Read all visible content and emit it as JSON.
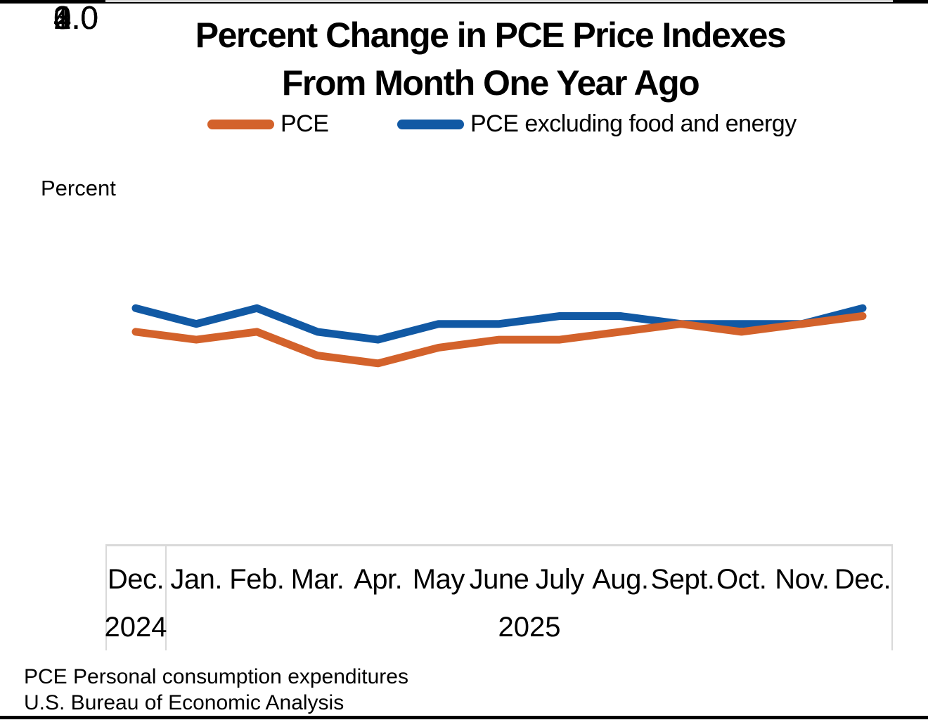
{
  "page": {
    "title_line1": "Percent Change in PCE Price Indexes",
    "title_line2": "From Month One Year Ago",
    "axis_unit_label": "Percent",
    "footer_line1": "PCE Personal consumption expenditures",
    "footer_line2": "U.S. Bureau of Economic Analysis"
  },
  "chart_data": {
    "type": "line",
    "title": "Percent Change in PCE Price Indexes From Month One Year Ago",
    "ylabel": "Percent",
    "ylim": [
      0.0,
      4.0
    ],
    "yticks": [
      "4.0",
      "3.0",
      "2.0",
      "1.0",
      "0.0"
    ],
    "grid": true,
    "legend_position": "top",
    "categories": [
      "Dec.",
      "Jan.",
      "Feb.",
      "Mar.",
      "Apr.",
      "May",
      "June",
      "July",
      "Aug.",
      "Sept.",
      "Oct.",
      "Nov.",
      "Dec."
    ],
    "year_groups": [
      {
        "label": "2024",
        "categories": [
          "Dec."
        ]
      },
      {
        "label": "2025",
        "categories": [
          "Jan.",
          "Feb.",
          "Mar.",
          "Apr.",
          "May",
          "June",
          "July",
          "Aug.",
          "Sept.",
          "Oct.",
          "Nov.",
          "Dec."
        ]
      }
    ],
    "series": [
      {
        "name": "PCE",
        "color": "#D3622B",
        "values": [
          2.7,
          2.6,
          2.7,
          2.4,
          2.3,
          2.5,
          2.6,
          2.6,
          2.7,
          2.8,
          2.7,
          2.8,
          2.9
        ]
      },
      {
        "name": "PCE excluding food and energy",
        "color": "#1159A4",
        "values": [
          3.0,
          2.8,
          3.0,
          2.7,
          2.6,
          2.8,
          2.8,
          2.9,
          2.9,
          2.8,
          2.8,
          2.8,
          3.0
        ]
      }
    ]
  }
}
